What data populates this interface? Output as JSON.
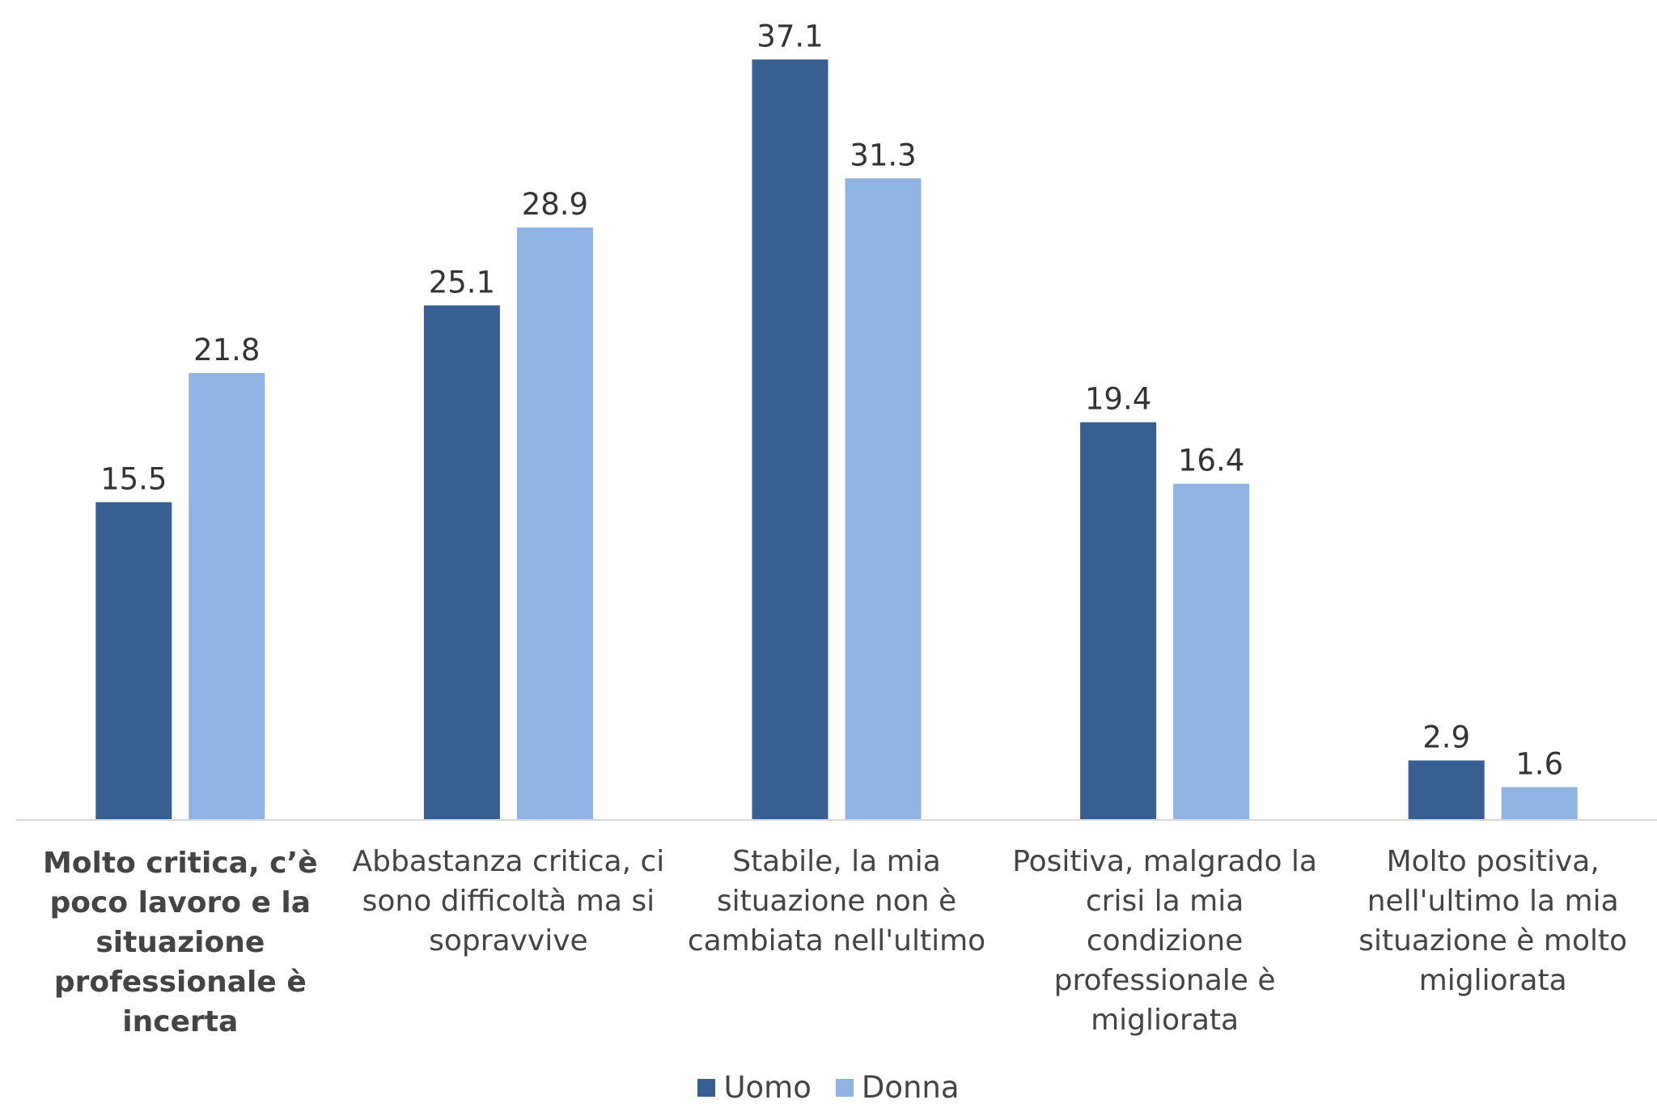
{
  "chart_data": {
    "type": "bar",
    "categories": [
      "Molto critica, c’è poco lavoro e la situazione professionale è incerta",
      "Abbastanza critica, ci sono difficoltà ma si sopravvive",
      "Stabile, la mia situazione non è cambiata nell'ultimo",
      "Positiva, malgrado la crisi la mia condizione professionale è migliorata",
      "Molto positiva, nell'ultimo la mia situazione è molto migliorata"
    ],
    "series": [
      {
        "name": "Uomo",
        "color": "#375f91",
        "values": [
          15.5,
          25.1,
          37.1,
          19.4,
          2.9
        ]
      },
      {
        "name": "Donna",
        "color": "#8fb4e3",
        "values": [
          21.8,
          28.9,
          31.3,
          16.4,
          1.6
        ]
      }
    ],
    "ylim": [
      0,
      40
    ],
    "legend": "bottom"
  }
}
